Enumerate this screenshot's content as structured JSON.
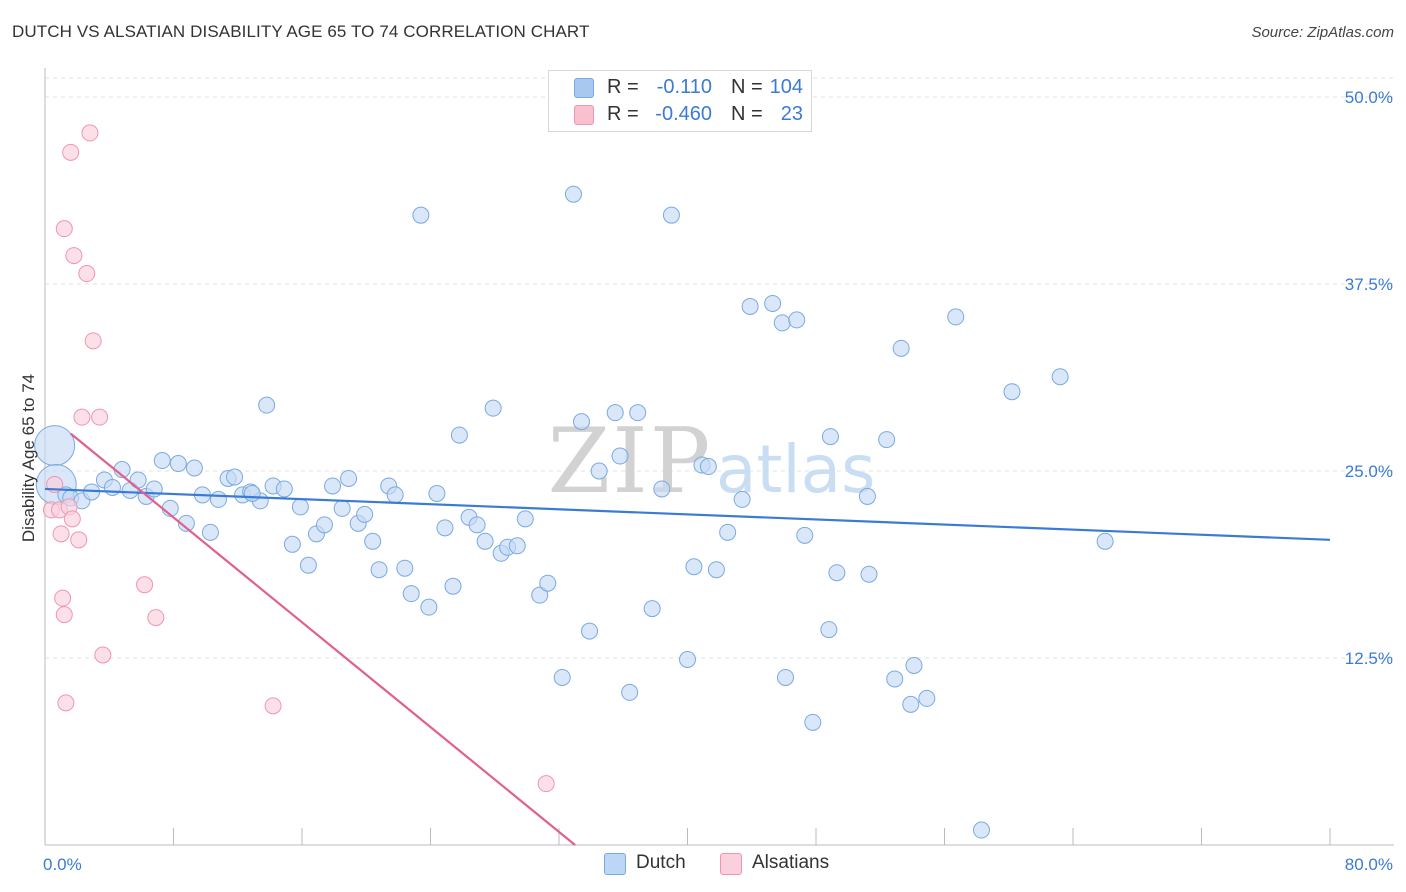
{
  "title": "DUTCH VS ALSATIAN DISABILITY AGE 65 TO 74 CORRELATION CHART",
  "source": "Source: ZipAtlas.com",
  "watermark": {
    "zip": "ZIP",
    "atlas": "atlas"
  },
  "legend_top": {
    "rows": [
      {
        "r_label": "R =",
        "r_value": "-0.110",
        "n_label": "N =",
        "n_value": "104",
        "color": "#a9c8f0",
        "border": "#7aaae0"
      },
      {
        "r_label": "R =",
        "r_value": "-0.460",
        "n_label": "N =",
        "n_value": "23",
        "color": "#f9c0d0",
        "border": "#ef95b0"
      }
    ]
  },
  "legend_bottom": [
    {
      "label": "Dutch",
      "color": "#bcd6f5",
      "border": "#7aaae0"
    },
    {
      "label": "Alsatians",
      "color": "#fbd0dc",
      "border": "#ef95b0"
    }
  ],
  "chart_data": {
    "type": "scatter",
    "title": "DUTCH VS ALSATIAN DISABILITY AGE 65 TO 74 CORRELATION CHART",
    "xlabel": "",
    "ylabel": "Disability Age 65 to 74",
    "xlim": [
      0,
      80
    ],
    "ylim": [
      0,
      50
    ],
    "x_tick_labels": [
      "0.0%",
      "80.0%"
    ],
    "y_ticks": [
      12.5,
      25.0,
      37.5,
      50.0
    ],
    "y_tick_labels": [
      "12.5%",
      "25.0%",
      "37.5%",
      "50.0%"
    ],
    "grid": true,
    "series": [
      {
        "name": "Dutch",
        "color": "#3a7bd5",
        "fill": "#c5daf4",
        "edge": "#7aaae0",
        "trend": {
          "x": [
            0,
            80
          ],
          "y": [
            23.8,
            20.4
          ]
        },
        "points": [
          [
            0.6,
            26.7,
            "L"
          ],
          [
            0.7,
            24.1,
            "L"
          ],
          [
            1.3,
            23.4
          ],
          [
            1.6,
            23.2
          ],
          [
            2.3,
            23.0
          ],
          [
            2.9,
            23.6
          ],
          [
            3.7,
            24.4
          ],
          [
            4.2,
            23.9
          ],
          [
            4.8,
            25.1
          ],
          [
            5.3,
            23.7
          ],
          [
            5.8,
            24.4
          ],
          [
            6.3,
            23.3
          ],
          [
            6.8,
            23.8
          ],
          [
            7.3,
            25.7
          ],
          [
            7.8,
            22.5
          ],
          [
            8.3,
            25.5
          ],
          [
            8.8,
            21.5
          ],
          [
            9.3,
            25.2
          ],
          [
            9.8,
            23.4
          ],
          [
            10.3,
            20.9
          ],
          [
            10.8,
            23.1
          ],
          [
            11.4,
            24.5
          ],
          [
            11.8,
            24.6
          ],
          [
            12.3,
            23.4
          ],
          [
            12.8,
            23.6
          ],
          [
            13.4,
            23.0
          ],
          [
            13.8,
            29.4
          ],
          [
            14.2,
            24.0
          ],
          [
            14.9,
            23.8
          ],
          [
            15.4,
            20.1
          ],
          [
            15.9,
            22.6
          ],
          [
            16.4,
            18.7
          ],
          [
            16.9,
            20.8
          ],
          [
            17.4,
            21.4
          ],
          [
            17.9,
            24.0
          ],
          [
            18.5,
            22.5
          ],
          [
            18.9,
            24.5
          ],
          [
            19.5,
            21.5
          ],
          [
            19.9,
            22.1
          ],
          [
            20.4,
            20.3
          ],
          [
            20.8,
            18.4
          ],
          [
            21.4,
            24.0
          ],
          [
            21.8,
            23.4
          ],
          [
            22.4,
            18.5
          ],
          [
            22.8,
            16.8
          ],
          [
            23.4,
            42.1
          ],
          [
            23.9,
            15.9
          ],
          [
            24.4,
            23.5
          ],
          [
            24.9,
            21.2
          ],
          [
            25.4,
            17.3
          ],
          [
            25.8,
            27.4
          ],
          [
            26.4,
            21.9
          ],
          [
            26.9,
            21.4
          ],
          [
            27.4,
            20.3
          ],
          [
            27.9,
            29.2
          ],
          [
            28.4,
            19.5
          ],
          [
            28.8,
            19.9
          ],
          [
            29.4,
            20.0
          ],
          [
            29.9,
            21.8
          ],
          [
            30.8,
            16.7
          ],
          [
            31.3,
            17.5
          ],
          [
            32.2,
            11.2
          ],
          [
            32.9,
            43.5
          ],
          [
            33.4,
            28.3
          ],
          [
            33.9,
            14.3
          ],
          [
            34.5,
            25.0
          ],
          [
            35.5,
            28.9
          ],
          [
            35.8,
            26.0
          ],
          [
            36.4,
            10.2
          ],
          [
            36.9,
            28.9
          ],
          [
            37.8,
            15.8
          ],
          [
            38.4,
            23.8
          ],
          [
            39.0,
            42.1
          ],
          [
            40.0,
            12.4
          ],
          [
            40.4,
            18.6
          ],
          [
            40.9,
            25.4
          ],
          [
            41.3,
            25.3
          ],
          [
            41.8,
            18.4
          ],
          [
            42.5,
            20.9
          ],
          [
            43.4,
            23.1
          ],
          [
            43.9,
            36.0
          ],
          [
            45.3,
            36.2
          ],
          [
            45.9,
            34.9
          ],
          [
            46.1,
            11.2
          ],
          [
            46.8,
            35.1
          ],
          [
            47.3,
            20.7
          ],
          [
            47.8,
            8.2
          ],
          [
            48.8,
            14.4
          ],
          [
            48.9,
            27.3
          ],
          [
            49.3,
            18.2
          ],
          [
            51.2,
            23.3
          ],
          [
            51.3,
            18.1
          ],
          [
            52.4,
            27.1
          ],
          [
            52.9,
            11.1
          ],
          [
            53.3,
            33.2
          ],
          [
            53.9,
            9.4
          ],
          [
            54.1,
            12.0
          ],
          [
            54.9,
            9.8
          ],
          [
            56.7,
            35.3
          ],
          [
            58.3,
            1.0
          ],
          [
            60.2,
            30.3
          ],
          [
            63.2,
            31.3
          ],
          [
            66.0,
            20.3
          ],
          [
            12.9,
            23.5
          ]
        ]
      },
      {
        "name": "Alsatians",
        "color": "#e0608e",
        "fill": "#fbd0dc",
        "edge": "#ef95b0",
        "trend": {
          "x": [
            1.6,
            33.0
          ],
          "y": [
            27.5,
            0.0
          ]
        },
        "points": [
          [
            0.4,
            22.4
          ],
          [
            0.6,
            24.1
          ],
          [
            0.9,
            22.4
          ],
          [
            1.0,
            20.8
          ],
          [
            1.1,
            16.5
          ],
          [
            1.2,
            15.4
          ],
          [
            1.2,
            41.2
          ],
          [
            1.3,
            9.5
          ],
          [
            1.5,
            22.6
          ],
          [
            1.6,
            46.3
          ],
          [
            1.7,
            21.8
          ],
          [
            1.8,
            39.4
          ],
          [
            2.1,
            20.4
          ],
          [
            2.3,
            28.6
          ],
          [
            2.6,
            38.2
          ],
          [
            2.8,
            47.6
          ],
          [
            3.0,
            33.7
          ],
          [
            3.4,
            28.6
          ],
          [
            3.6,
            12.7
          ],
          [
            6.2,
            17.4
          ],
          [
            6.9,
            15.2
          ],
          [
            14.2,
            9.3
          ],
          [
            31.2,
            4.1
          ]
        ]
      }
    ]
  }
}
